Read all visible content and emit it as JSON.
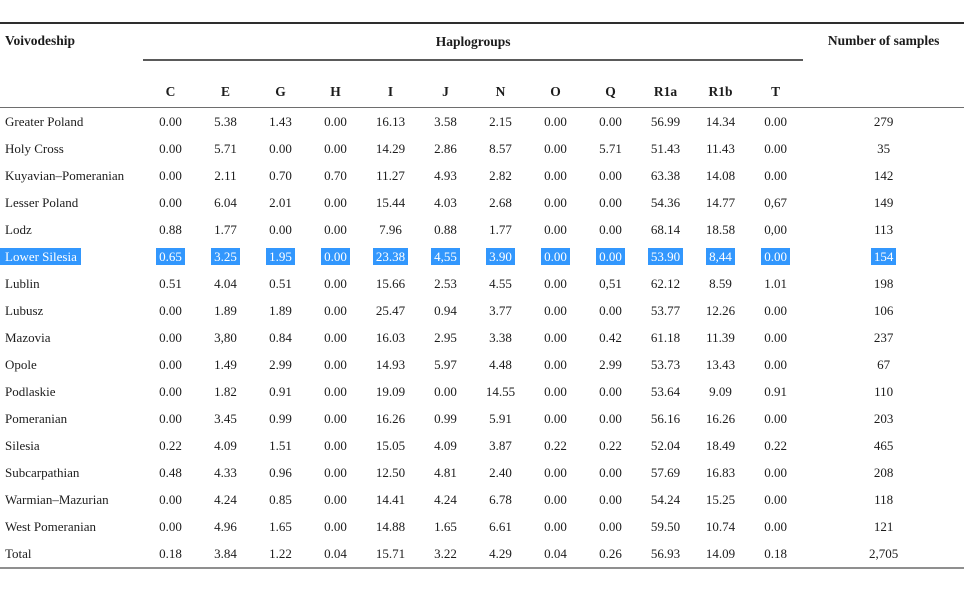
{
  "table": {
    "headers": {
      "voivodeship": "Voivodeship",
      "haplogroups_group": "Haplogroups",
      "samples": "Number of samples",
      "haplogroup_columns": [
        "C",
        "E",
        "G",
        "H",
        "I",
        "J",
        "N",
        "O",
        "Q",
        "R1a",
        "R1b",
        "T"
      ]
    },
    "rows": [
      {
        "name": "Greater Poland",
        "selected": false,
        "values": [
          "0.00",
          "5.38",
          "1.43",
          "0.00",
          "16.13",
          "3.58",
          "2.15",
          "0.00",
          "0.00",
          "56.99",
          "14.34",
          "0.00"
        ],
        "samples": "279"
      },
      {
        "name": "Holy Cross",
        "selected": false,
        "values": [
          "0.00",
          "5.71",
          "0.00",
          "0.00",
          "14.29",
          "2.86",
          "8.57",
          "0.00",
          "5.71",
          "51.43",
          "11.43",
          "0.00"
        ],
        "samples": "35"
      },
      {
        "name": "Kuyavian–Pomeranian",
        "selected": false,
        "values": [
          "0.00",
          "2.11",
          "0.70",
          "0.70",
          "11.27",
          "4.93",
          "2.82",
          "0.00",
          "0.00",
          "63.38",
          "14.08",
          "0.00"
        ],
        "samples": "142"
      },
      {
        "name": "Lesser Poland",
        "selected": false,
        "values": [
          "0.00",
          "6.04",
          "2.01",
          "0.00",
          "15.44",
          "4.03",
          "2.68",
          "0.00",
          "0.00",
          "54.36",
          "14.77",
          "0,67"
        ],
        "samples": "149"
      },
      {
        "name": "Lodz",
        "selected": false,
        "values": [
          "0.88",
          "1.77",
          "0.00",
          "0.00",
          "7.96",
          "0.88",
          "1.77",
          "0.00",
          "0.00",
          "68.14",
          "18.58",
          "0,00"
        ],
        "samples": "113"
      },
      {
        "name": "Lower Silesia",
        "selected": true,
        "values": [
          "0.65",
          "3.25",
          "1.95",
          "0.00",
          "23.38",
          "4,55",
          "3.90",
          "0.00",
          "0.00",
          "53.90",
          "8,44",
          "0.00"
        ],
        "samples": "154"
      },
      {
        "name": "Lublin",
        "selected": false,
        "values": [
          "0.51",
          "4.04",
          "0.51",
          "0.00",
          "15.66",
          "2.53",
          "4.55",
          "0.00",
          "0,51",
          "62.12",
          "8.59",
          "1.01"
        ],
        "samples": "198"
      },
      {
        "name": "Lubusz",
        "selected": false,
        "values": [
          "0.00",
          "1.89",
          "1.89",
          "0.00",
          "25.47",
          "0.94",
          "3.77",
          "0.00",
          "0.00",
          "53.77",
          "12.26",
          "0.00"
        ],
        "samples": "106"
      },
      {
        "name": "Mazovia",
        "selected": false,
        "values": [
          "0.00",
          "3,80",
          "0.84",
          "0.00",
          "16.03",
          "2.95",
          "3.38",
          "0.00",
          "0.42",
          "61.18",
          "11.39",
          "0.00"
        ],
        "samples": "237"
      },
      {
        "name": "Opole",
        "selected": false,
        "values": [
          "0.00",
          "1.49",
          "2.99",
          "0.00",
          "14.93",
          "5.97",
          "4.48",
          "0.00",
          "2.99",
          "53.73",
          "13.43",
          "0.00"
        ],
        "samples": "67"
      },
      {
        "name": "Podlaskie",
        "selected": false,
        "values": [
          "0.00",
          "1.82",
          "0.91",
          "0.00",
          "19.09",
          "0.00",
          "14.55",
          "0.00",
          "0.00",
          "53.64",
          "9.09",
          "0.91"
        ],
        "samples": "110"
      },
      {
        "name": "Pomeranian",
        "selected": false,
        "values": [
          "0.00",
          "3.45",
          "0.99",
          "0.00",
          "16.26",
          "0.99",
          "5.91",
          "0.00",
          "0.00",
          "56.16",
          "16.26",
          "0.00"
        ],
        "samples": "203"
      },
      {
        "name": "Silesia",
        "selected": false,
        "values": [
          "0.22",
          "4.09",
          "1.51",
          "0.00",
          "15.05",
          "4.09",
          "3.87",
          "0.22",
          "0.22",
          "52.04",
          "18.49",
          "0.22"
        ],
        "samples": "465"
      },
      {
        "name": "Subcarpathian",
        "selected": false,
        "values": [
          "0.48",
          "4.33",
          "0.96",
          "0.00",
          "12.50",
          "4.81",
          "2.40",
          "0.00",
          "0.00",
          "57.69",
          "16.83",
          "0.00"
        ],
        "samples": "208"
      },
      {
        "name": "Warmian–Mazurian",
        "selected": false,
        "values": [
          "0.00",
          "4.24",
          "0.85",
          "0.00",
          "14.41",
          "4.24",
          "6.78",
          "0.00",
          "0.00",
          "54.24",
          "15.25",
          "0.00"
        ],
        "samples": "118"
      },
      {
        "name": "West Pomeranian",
        "selected": false,
        "values": [
          "0.00",
          "4.96",
          "1.65",
          "0.00",
          "14.88",
          "1.65",
          "6.61",
          "0.00",
          "0.00",
          "59.50",
          "10.74",
          "0.00"
        ],
        "samples": "121"
      },
      {
        "name": "Total",
        "selected": false,
        "values": [
          "0.18",
          "3.84",
          "1.22",
          "0.04",
          "15.71",
          "3.22",
          "4.29",
          "0.04",
          "0.26",
          "56.93",
          "14.09",
          "0.18"
        ],
        "samples": "2,705"
      }
    ]
  },
  "colors": {
    "selection_background": "#3297fd",
    "selection_text": "#ffffff",
    "text": "#1c1c1c"
  }
}
